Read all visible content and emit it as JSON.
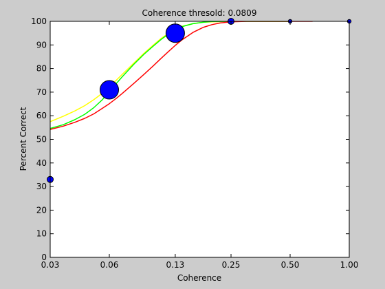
{
  "chart_data": {
    "type": "scatter",
    "title": "Coherence thresold: 0.0809",
    "xlabel": "Coherence",
    "ylabel": "Percent Correct",
    "x_scale": "log",
    "xlim": [
      0.03,
      1.0
    ],
    "ylim": [
      0,
      100
    ],
    "x_ticks": [
      0.03,
      0.06,
      0.13,
      0.25,
      0.5,
      1.0
    ],
    "x_tick_labels": [
      "0.03",
      "0.06",
      "0.13",
      "0.25",
      "0.50",
      "1.00"
    ],
    "y_ticks": [
      0,
      10,
      20,
      30,
      40,
      50,
      60,
      70,
      80,
      90,
      100
    ],
    "y_tick_labels": [
      "0",
      "10",
      "20",
      "30",
      "40",
      "50",
      "60",
      "70",
      "80",
      "90",
      "100"
    ],
    "grid": false,
    "background_color": "#cccccc",
    "axes_color": "#ffffff",
    "points": {
      "color": "#0000ff",
      "x": [
        0.03,
        0.06,
        0.13,
        0.25,
        0.5,
        1.0
      ],
      "y": [
        33,
        71,
        95,
        100,
        100,
        100
      ],
      "relative_size": [
        1.0,
        3.0,
        3.0,
        1.0,
        0.6,
        0.6
      ]
    },
    "series": [
      {
        "color": "#ffff00",
        "x": [
          0.03,
          0.035,
          0.04,
          0.045,
          0.05,
          0.055,
          0.06,
          0.065,
          0.07,
          0.08,
          0.09,
          0.1,
          0.11,
          0.12,
          0.13,
          0.14,
          0.16,
          0.18,
          0.2,
          0.25,
          0.3,
          0.5
        ],
        "y": [
          57.5,
          59.8,
          62.0,
          64.3,
          66.8,
          69.4,
          72.2,
          75.0,
          77.6,
          82.3,
          86.4,
          89.8,
          92.7,
          94.9,
          96.6,
          97.8,
          99.0,
          99.6,
          99.8,
          100,
          100,
          100
        ]
      },
      {
        "color": "#00ff00",
        "x": [
          0.03,
          0.035,
          0.04,
          0.045,
          0.05,
          0.055,
          0.06,
          0.065,
          0.07,
          0.08,
          0.09,
          0.1,
          0.11,
          0.12,
          0.13,
          0.14,
          0.16,
          0.18,
          0.2,
          0.25,
          0.3,
          0.5
        ],
        "y": [
          54.6,
          56.2,
          58.3,
          60.6,
          63.4,
          66.6,
          70.2,
          73.6,
          76.6,
          81.8,
          86.0,
          89.4,
          92.3,
          94.6,
          96.5,
          97.7,
          99.0,
          99.6,
          99.9,
          100,
          100,
          100
        ]
      },
      {
        "color": "#ff0000",
        "x": [
          0.03,
          0.035,
          0.04,
          0.045,
          0.05,
          0.055,
          0.06,
          0.065,
          0.07,
          0.08,
          0.09,
          0.1,
          0.11,
          0.12,
          0.13,
          0.14,
          0.16,
          0.18,
          0.2,
          0.22,
          0.25,
          0.3,
          0.65
        ],
        "y": [
          54.2,
          55.6,
          57.2,
          58.9,
          60.8,
          63.0,
          65.1,
          67.3,
          69.5,
          73.7,
          77.5,
          81.0,
          84.3,
          87.2,
          89.8,
          92.0,
          95.3,
          97.4,
          98.6,
          99.3,
          99.8,
          100,
          100
        ]
      }
    ]
  }
}
